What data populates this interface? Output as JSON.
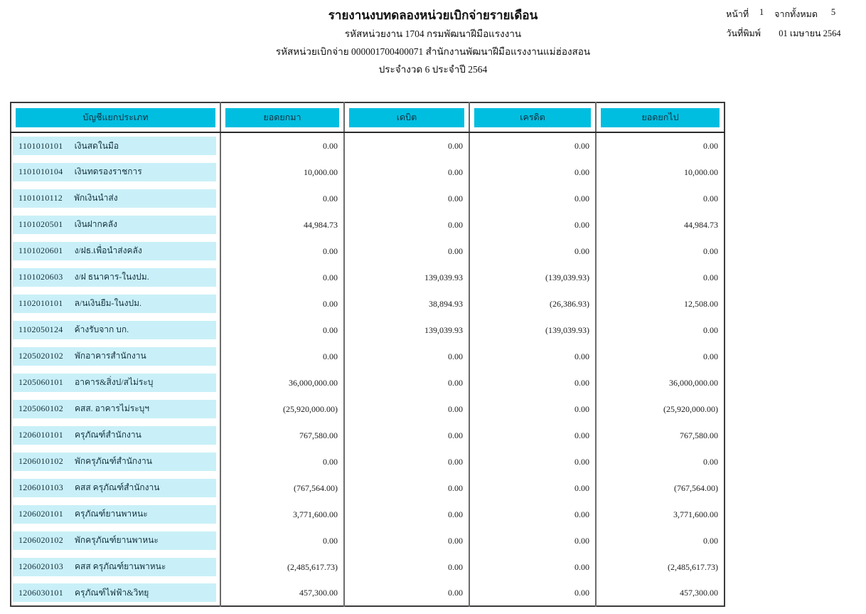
{
  "colors": {
    "header_fill": "#00bee0",
    "row_fill": "#c9f0f8"
  },
  "header": {
    "title": "รายงานงบทดลองหน่วยเบิกจ่ายรายเดือน",
    "org_line": "รหัสหน่วยงาน 1704 กรมพัฒนาฝีมือแรงงาน",
    "unit_line": "รหัสหน่วยเบิกจ่าย 000001700400071 สำนักงานพัฒนาฝีมือแรงงานแม่ฮ่องสอน",
    "period_line": "ประจำงวด 6 ประจำปี 2564",
    "page_label": "หน้าที่",
    "page_number": "1",
    "total_label": "จากทั้งหมด",
    "total_pages": "5",
    "print_date_label": "วันที่พิมพ์",
    "print_date": "01 เมษายน 2564"
  },
  "table": {
    "columns": [
      "บัญชีแยกประเภท",
      "ยอดยกมา",
      "เดบิต",
      "เครดิต",
      "ยอดยกไป"
    ],
    "rows": [
      {
        "code": "1101010101",
        "name": "เงินสดในมือ",
        "opening": "0.00",
        "debit": "0.00",
        "credit": "0.00",
        "closing": "0.00"
      },
      {
        "code": "1101010104",
        "name": "เงินทดรองราชการ",
        "opening": "10,000.00",
        "debit": "0.00",
        "credit": "0.00",
        "closing": "10,000.00"
      },
      {
        "code": "1101010112",
        "name": "พักเงินนำส่ง",
        "opening": "0.00",
        "debit": "0.00",
        "credit": "0.00",
        "closing": "0.00"
      },
      {
        "code": "1101020501",
        "name": "เงินฝากคลัง",
        "opening": "44,984.73",
        "debit": "0.00",
        "credit": "0.00",
        "closing": "44,984.73"
      },
      {
        "code": "1101020601",
        "name": "ง/ฝธ.เพื่อนำส่งคลัง",
        "opening": "0.00",
        "debit": "0.00",
        "credit": "0.00",
        "closing": "0.00"
      },
      {
        "code": "1101020603",
        "name": "ง/ฝ ธนาคาร-ในงปม.",
        "opening": "0.00",
        "debit": "139,039.93",
        "credit": "(139,039.93)",
        "closing": "0.00"
      },
      {
        "code": "1102010101",
        "name": "ล/นเงินยืม-ในงปม.",
        "opening": "0.00",
        "debit": "38,894.93",
        "credit": "(26,386.93)",
        "closing": "12,508.00"
      },
      {
        "code": "1102050124",
        "name": "ค้างรับจาก บก.",
        "opening": "0.00",
        "debit": "139,039.93",
        "credit": "(139,039.93)",
        "closing": "0.00"
      },
      {
        "code": "1205020102",
        "name": "พักอาคารสำนักงาน",
        "opening": "0.00",
        "debit": "0.00",
        "credit": "0.00",
        "closing": "0.00"
      },
      {
        "code": "1205060101",
        "name": "อาคาร&สิ่งป/สไม่ระบุ",
        "opening": "36,000,000.00",
        "debit": "0.00",
        "credit": "0.00",
        "closing": "36,000,000.00"
      },
      {
        "code": "1205060102",
        "name": "คสส. อาคารไม่ระบุฯ",
        "opening": "(25,920,000.00)",
        "debit": "0.00",
        "credit": "0.00",
        "closing": "(25,920,000.00)"
      },
      {
        "code": "1206010101",
        "name": "ครุภัณฑ์สำนักงาน",
        "opening": "767,580.00",
        "debit": "0.00",
        "credit": "0.00",
        "closing": "767,580.00"
      },
      {
        "code": "1206010102",
        "name": "พักครุภัณฑ์สำนักงาน",
        "opening": "0.00",
        "debit": "0.00",
        "credit": "0.00",
        "closing": "0.00"
      },
      {
        "code": "1206010103",
        "name": "คสส ครุภัณฑ์สำนักงาน",
        "opening": "(767,564.00)",
        "debit": "0.00",
        "credit": "0.00",
        "closing": "(767,564.00)"
      },
      {
        "code": "1206020101",
        "name": "ครุภัณฑ์ยานพาหนะ",
        "opening": "3,771,600.00",
        "debit": "0.00",
        "credit": "0.00",
        "closing": "3,771,600.00"
      },
      {
        "code": "1206020102",
        "name": "พักครุภัณฑ์ยานพาหนะ",
        "opening": "0.00",
        "debit": "0.00",
        "credit": "0.00",
        "closing": "0.00"
      },
      {
        "code": "1206020103",
        "name": "คสส ครุภัณฑ์ยานพาหนะ",
        "opening": "(2,485,617.73)",
        "debit": "0.00",
        "credit": "0.00",
        "closing": "(2,485,617.73)"
      },
      {
        "code": "1206030101",
        "name": "ครุภัณฑ์ไฟฟ้า&วิทยุ",
        "opening": "457,300.00",
        "debit": "0.00",
        "credit": "0.00",
        "closing": "457,300.00"
      }
    ]
  }
}
